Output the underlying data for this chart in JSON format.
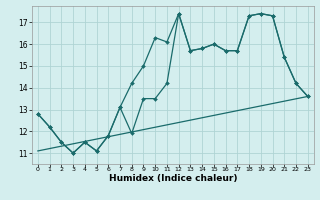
{
  "title": "",
  "xlabel": "Humidex (Indice chaleur)",
  "bg_color": "#d4eeee",
  "grid_color": "#afd4d4",
  "line_color": "#1a6b6b",
  "xlim": [
    -0.5,
    23.5
  ],
  "ylim": [
    10.5,
    17.75
  ],
  "yticks": [
    11,
    12,
    13,
    14,
    15,
    16,
    17
  ],
  "xticks": [
    0,
    1,
    2,
    3,
    4,
    5,
    6,
    7,
    8,
    9,
    10,
    11,
    12,
    13,
    14,
    15,
    16,
    17,
    18,
    19,
    20,
    21,
    22,
    23
  ],
  "series1_x": [
    0,
    1,
    2,
    3,
    4,
    5,
    6,
    7,
    8,
    9,
    10,
    11,
    12,
    13,
    14,
    15,
    16,
    17,
    18,
    19,
    20,
    21,
    22,
    23
  ],
  "series1_y": [
    12.8,
    12.2,
    11.5,
    11.0,
    11.5,
    11.1,
    11.8,
    13.1,
    11.9,
    13.5,
    13.5,
    14.2,
    17.4,
    15.7,
    15.8,
    16.0,
    15.7,
    15.7,
    17.3,
    17.4,
    17.3,
    15.4,
    14.2,
    13.6
  ],
  "series2_x": [
    0,
    1,
    2,
    3,
    4,
    5,
    6,
    7,
    8,
    9,
    10,
    11,
    12,
    13,
    14,
    15,
    16,
    17,
    18,
    19,
    20,
    21,
    22,
    23
  ],
  "series2_y": [
    12.8,
    12.2,
    11.5,
    11.0,
    11.5,
    11.1,
    11.8,
    13.1,
    14.2,
    15.0,
    16.3,
    16.1,
    17.4,
    15.7,
    15.8,
    16.0,
    15.7,
    15.7,
    17.3,
    17.4,
    17.3,
    15.4,
    14.2,
    13.6
  ],
  "series3_x": [
    0,
    23
  ],
  "series3_y": [
    11.1,
    13.6
  ],
  "marker_style": "D",
  "marker_size": 2.0,
  "line_width": 0.9
}
